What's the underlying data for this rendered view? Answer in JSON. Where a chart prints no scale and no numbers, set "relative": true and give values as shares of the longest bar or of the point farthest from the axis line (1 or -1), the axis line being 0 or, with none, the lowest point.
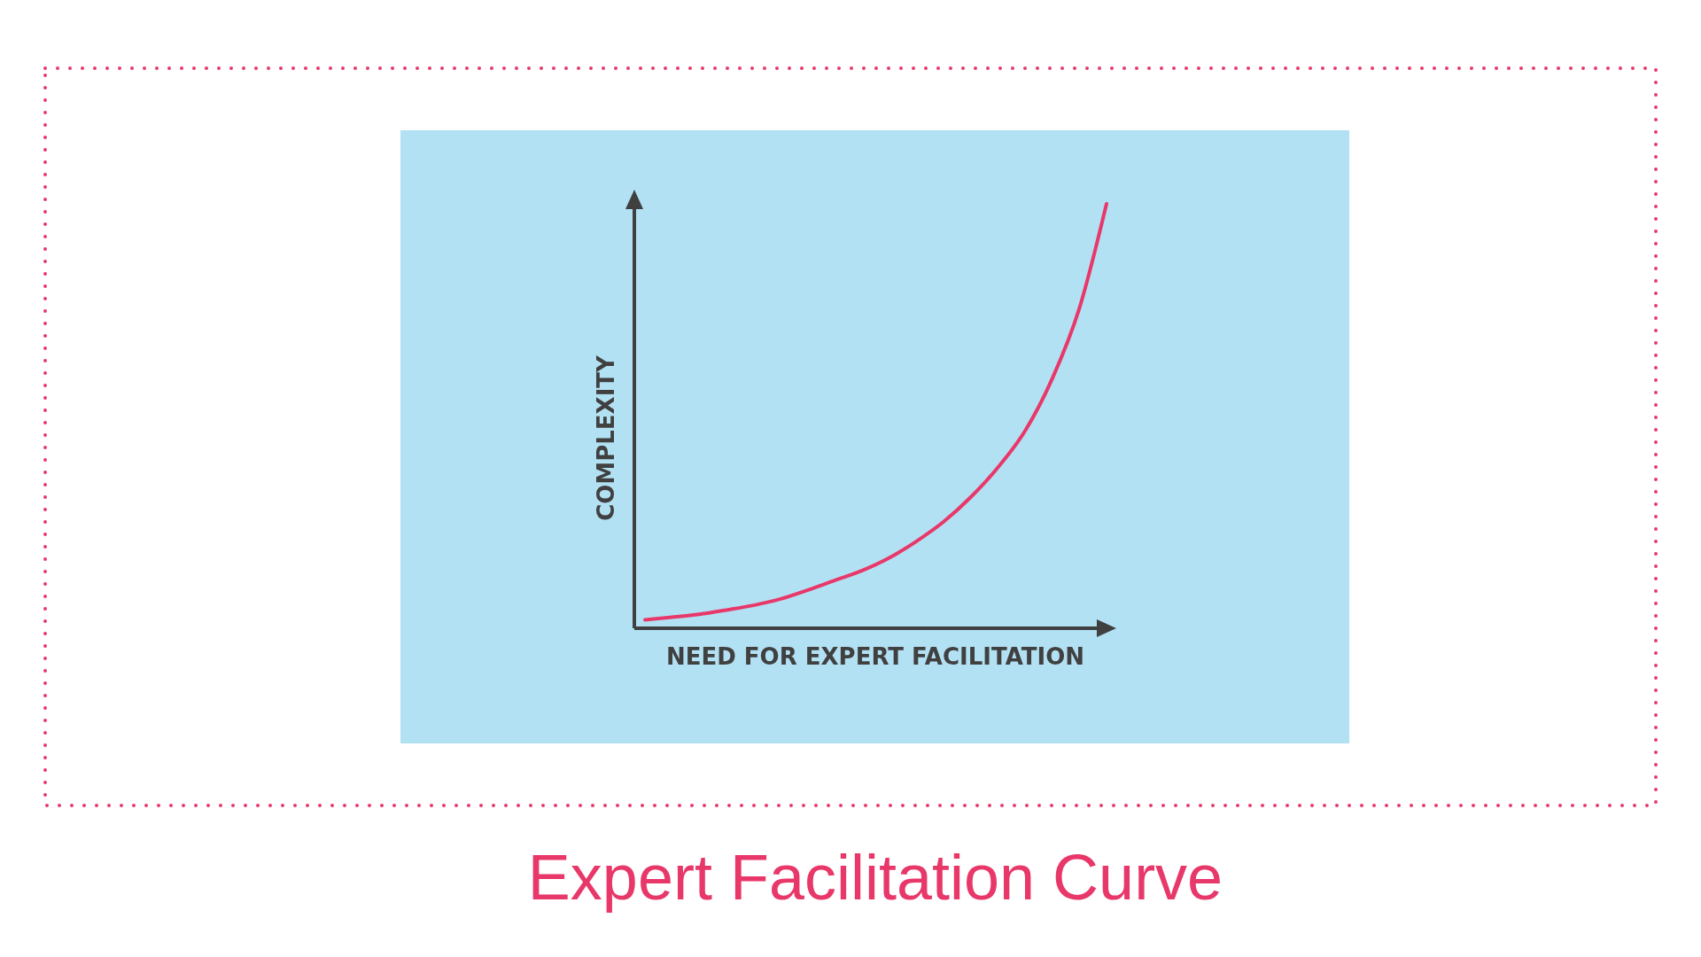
{
  "chart_data": {
    "type": "line",
    "title": "Expert Facilitation Curve",
    "xlabel": "NEED FOR EXPERT FACILITATION",
    "ylabel": "COMPLEXITY",
    "relative": true,
    "categories": [
      null,
      null,
      null,
      null,
      null,
      null,
      null,
      null,
      null,
      null,
      null,
      null,
      null,
      null,
      null,
      null,
      null,
      null
    ],
    "series": [
      {
        "color": "#e8386a",
        "values": [
          0.02,
          0.026,
          0.033,
          0.043,
          0.054,
          0.069,
          0.09,
          0.113,
          0.136,
          0.166,
          0.205,
          0.251,
          0.309,
          0.379,
          0.465,
          0.588,
          0.754,
          1
        ]
      }
    ]
  }
}
